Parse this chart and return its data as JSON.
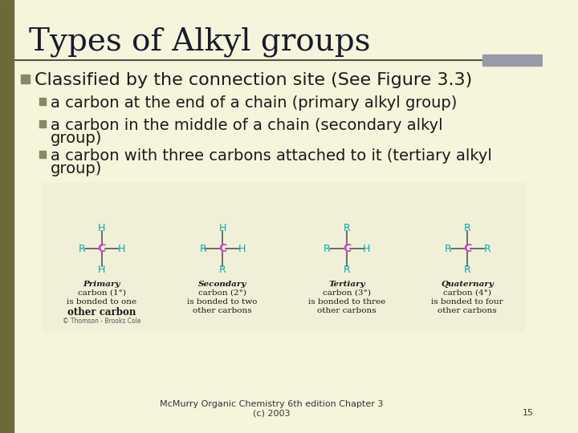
{
  "bg_color": "#f5f5dc",
  "slide_bg": "#f5f5dc",
  "title": "Types of Alkyl groups",
  "title_color": "#1a1a2e",
  "title_fontsize": 28,
  "title_font": "serif",
  "header_line_color": "#8b8b9e",
  "left_bar_color": "#6b6b3a",
  "bullet1": "Classified by the connection site (See Figure 3.3)",
  "bullet1_color": "#1a1a1a",
  "bullet1_fontsize": 16,
  "sub_bullet_color": "#1a1a1a",
  "sub_bullet_fontsize": 14,
  "sub1": "a carbon at the end of a chain (primary alkyl group)",
  "sub2": "a carbon in the middle of a chain (secondary alkyl\ngroup)",
  "sub3": "a carbon with three carbons attached to it (tertiary alkyl\ngroup)",
  "diagram_bg": "#f0f0d8",
  "R_color": "#00aaaa",
  "H_color": "#00aaaa",
  "C_color": "#cc44cc",
  "bond_color": "#555555",
  "label_color": "#1a1a1a",
  "footer_text": "McMurry Organic Chemistry 6th edition Chapter 3\n(c) 2003",
  "footer_page": "15",
  "footer_fontsize": 8,
  "bullet_square_color": "#888866"
}
